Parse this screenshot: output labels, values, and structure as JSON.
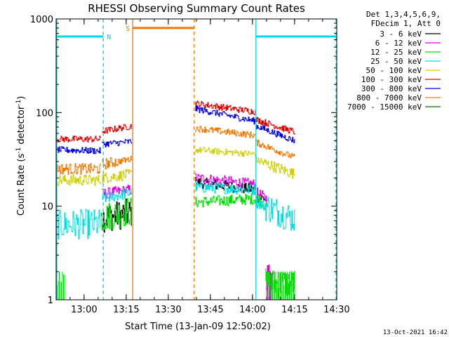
{
  "chart_data": {
    "type": "line",
    "title": "RHESSI Observing Summary Count Rates",
    "xlabel": "Start Time (13-Jan-09 12:50:02)",
    "ylabel_prefix": "Count Rate (s",
    "ylabel_sup1": "-1",
    "ylabel_mid": " detector",
    "ylabel_sup2": "-1",
    "ylabel_suffix": ")",
    "y_scale": "log",
    "ylim": [
      1,
      1000
    ],
    "xlim_minutes": [
      0,
      100
    ],
    "x_ticks": [
      {
        "label": "13:00",
        "minute": 9.97
      },
      {
        "label": "13:15",
        "minute": 24.97
      },
      {
        "label": "13:30",
        "minute": 39.97
      },
      {
        "label": "13:45",
        "minute": 54.97
      },
      {
        "label": "14:00",
        "minute": 69.97
      },
      {
        "label": "14:15",
        "minute": 84.97
      },
      {
        "label": "14:30",
        "minute": 99.97
      }
    ],
    "y_ticks": [
      {
        "label": "1",
        "value": 1
      },
      {
        "label": "10",
        "value": 10
      },
      {
        "label": "100",
        "value": 100
      },
      {
        "label": "1000",
        "value": 1000
      }
    ],
    "legend_header": [
      "Det 1,3,4,5,6,9,",
      "FDecim 1, Att 0"
    ],
    "legend_position": "right",
    "footer_date": "13-Oct-2021 16:42",
    "intervals": [
      {
        "label": "N",
        "color": "#00d8e0",
        "bar_level": 650,
        "start": 0,
        "end": 16.8
      },
      {
        "label": "N",
        "color": "#00d8e0",
        "bar_level": 650,
        "start": 71.2,
        "end": 100
      },
      {
        "label": "S",
        "color": "#f07800",
        "bar_level": 800,
        "start": 27.3,
        "end": 49.2
      }
    ],
    "eclipse": {
      "start": 27.3,
      "end": 49.2
    },
    "series": [
      {
        "name": "3 - 6 keV",
        "color": "#000000",
        "segments": [
          {
            "x": [
              16.3,
              27.0
            ],
            "y": [
              7.5,
              8.5
            ]
          },
          {
            "x": [
              49.5,
              71.0
            ],
            "y": [
              18,
              15
            ]
          },
          {
            "x": [
              71.2,
              75.0
            ],
            "y": [
              12.5,
              12
            ]
          }
        ]
      },
      {
        "name": "6 - 12 keV",
        "color": "#e000e0",
        "segments": [
          {
            "x": [
              16.3,
              27.0
            ],
            "y": [
              13.5,
              15
            ]
          },
          {
            "x": [
              49.5,
              71.0
            ],
            "y": [
              20,
              17
            ]
          },
          {
            "x": [
              71.2,
              75.0
            ],
            "y": [
              14,
              12
            ]
          },
          {
            "x": [
              75.0,
              77.0
            ],
            "y": [
              1.8,
              1.8
            ]
          }
        ]
      },
      {
        "name": "12 - 25 keV",
        "color": "#00e000",
        "segments": [
          {
            "x": [
              15.8,
              27.0
            ],
            "y": [
              7.5,
              9
            ]
          },
          {
            "x": [
              49.5,
              71.0
            ],
            "y": [
              11,
              12
            ]
          },
          {
            "x": [
              71.2,
              74.5
            ],
            "y": [
              12.5,
              10
            ]
          },
          {
            "x": [
              74.5,
              85.0
            ],
            "y": [
              1.5,
              1.5
            ]
          }
        ]
      },
      {
        "name": "25 - 50 keV",
        "color": "#00e0e0",
        "segments": [
          {
            "x": [
              0,
              15.8
            ],
            "y": [
              6.3,
              6.5
            ]
          },
          {
            "x": [
              16.3,
              27.0
            ],
            "y": [
              12,
              14
            ]
          },
          {
            "x": [
              49.5,
              71.0
            ],
            "y": [
              16,
              15
            ]
          },
          {
            "x": [
              71.2,
              85.0
            ],
            "y": [
              11,
              7.3
            ]
          }
        ]
      },
      {
        "name": "50 - 100 keV",
        "color": "#d0d000",
        "segments": [
          {
            "x": [
              0,
              15.8
            ],
            "y": [
              19,
              19
            ]
          },
          {
            "x": [
              16.3,
              27.0
            ],
            "y": [
              20,
              22
            ]
          },
          {
            "x": [
              49.5,
              71.0
            ],
            "y": [
              40,
              36
            ]
          },
          {
            "x": [
              71.2,
              85.0
            ],
            "y": [
              31,
              22
            ]
          }
        ]
      },
      {
        "name": "100 - 300 keV",
        "color": "#e00000",
        "segments": [
          {
            "x": [
              0,
              15.8
            ],
            "y": [
              52,
              52
            ]
          },
          {
            "x": [
              16.3,
              27.0
            ],
            "y": [
              63,
              72
            ]
          },
          {
            "x": [
              49.5,
              71.0
            ],
            "y": [
              125,
              102
            ]
          },
          {
            "x": [
              71.2,
              85.0
            ],
            "y": [
              84,
              62
            ]
          }
        ]
      },
      {
        "name": "300 - 800 keV",
        "color": "#0000e0",
        "segments": [
          {
            "x": [
              0,
              15.8
            ],
            "y": [
              40,
              39
            ]
          },
          {
            "x": [
              16.3,
              27.0
            ],
            "y": [
              46,
              49
            ]
          },
          {
            "x": [
              49.5,
              71.0
            ],
            "y": [
              110,
              81
            ]
          },
          {
            "x": [
              71.2,
              85.0
            ],
            "y": [
              72,
              50
            ]
          }
        ]
      },
      {
        "name": "800 - 7000 keV",
        "color": "#f07800",
        "segments": [
          {
            "x": [
              0,
              15.8
            ],
            "y": [
              25,
              25
            ]
          },
          {
            "x": [
              16.3,
              27.0
            ],
            "y": [
              28,
              32
            ]
          },
          {
            "x": [
              49.5,
              71.0
            ],
            "y": [
              68,
              57
            ]
          },
          {
            "x": [
              71.2,
              85.0
            ],
            "y": [
              48,
              33
            ]
          }
        ]
      },
      {
        "name": "7000 - 15000 keV",
        "color": "#007800",
        "segments": []
      }
    ],
    "low_count_bars": [
      {
        "color": "#00e000",
        "x_start": 0,
        "x_end": 3.2,
        "value": 2
      },
      {
        "color": "#00e000",
        "x_start": 76.0,
        "x_end": 85.0,
        "value": 2
      },
      {
        "color": "#e000e0",
        "x_start": 75.0,
        "x_end": 76.5,
        "value": 2
      }
    ]
  }
}
